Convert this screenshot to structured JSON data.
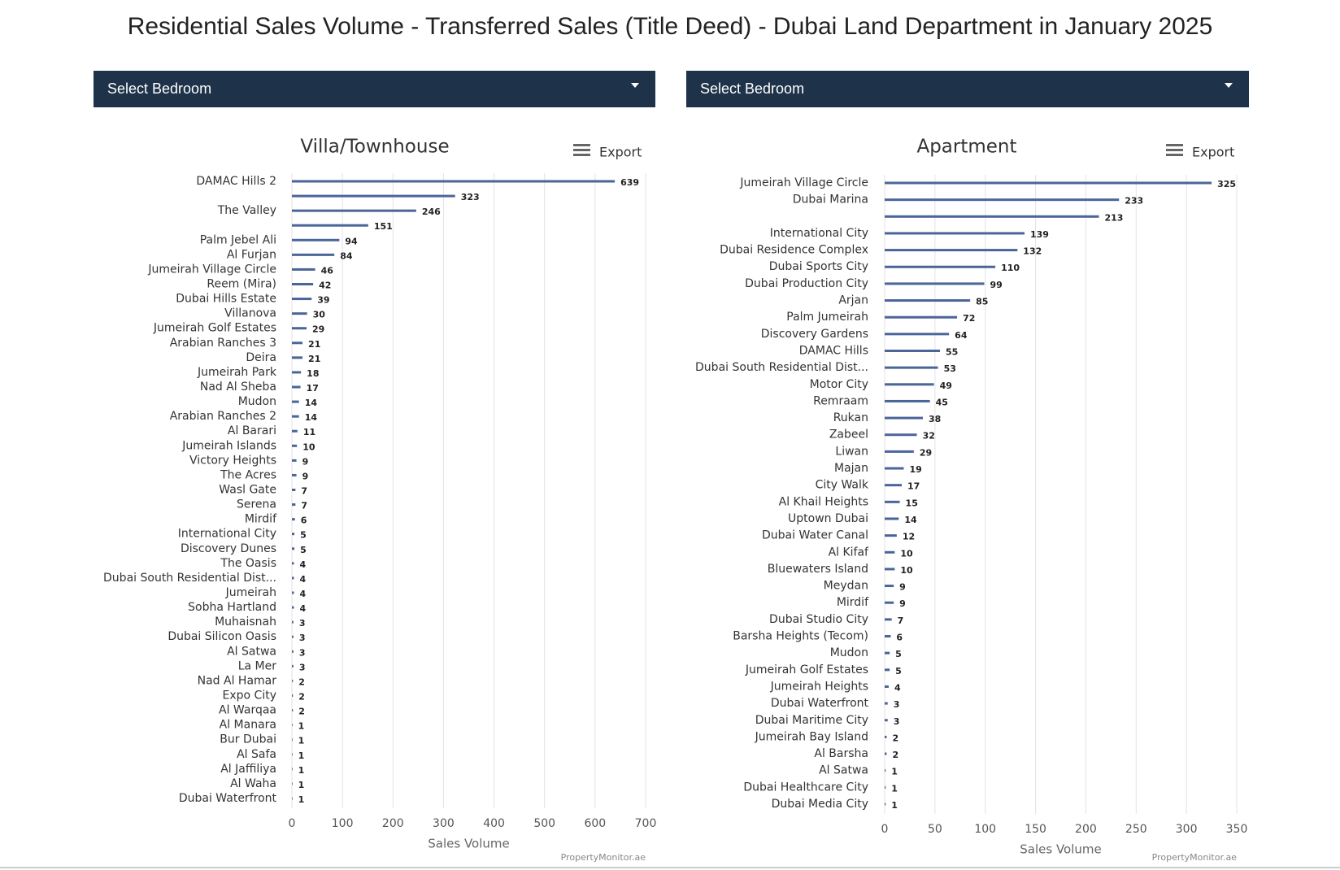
{
  "title": "Residential Sales Volume - Transferred Sales (Title Deed) - Dubai Land Department in January 2025",
  "chart_data": [
    {
      "type": "bar",
      "orientation": "horizontal",
      "dropdown_label": "Select Bedroom",
      "title": "Villa/Townhouse",
      "export_label": "Export",
      "xlabel": "Sales Volume",
      "credit": "PropertyMonitor.ae",
      "color": "#4a6599",
      "grid": true,
      "categories": [
        "DAMAC Hills 2",
        null,
        "The Valley",
        null,
        "Palm Jebel Ali",
        "Al Furjan",
        "Jumeirah Village Circle",
        "Reem (Mira)",
        "Dubai Hills Estate",
        "Villanova",
        "Jumeirah Golf Estates",
        "Arabian Ranches 3",
        "Deira",
        "Jumeirah Park",
        "Nad Al Sheba",
        "Mudon",
        "Arabian Ranches 2",
        "Al Barari",
        "Jumeirah Islands",
        "Victory Heights",
        "The Acres",
        "Wasl Gate",
        "Serena",
        "Mirdif",
        "International City",
        "Discovery Dunes",
        "The Oasis",
        "Dubai South Residential Dist...",
        "Jumeirah",
        "Sobha Hartland",
        "Muhaisnah",
        "Dubai Silicon Oasis",
        "Al Satwa",
        "La Mer",
        "Nad Al Hamar",
        "Expo City",
        "Al Warqaa",
        "Al Manara",
        "Bur Dubai",
        "Al Safa",
        "Al Jaffiliya",
        "Al Waha",
        "Dubai Waterfront"
      ],
      "values": [
        639,
        323,
        246,
        151,
        94,
        84,
        46,
        42,
        39,
        30,
        29,
        21,
        21,
        18,
        17,
        14,
        14,
        11,
        10,
        9,
        9,
        7,
        7,
        6,
        5,
        5,
        4,
        4,
        4,
        4,
        3,
        3,
        3,
        3,
        2,
        2,
        2,
        1,
        1,
        1,
        1,
        1,
        1
      ],
      "xlim": [
        0,
        700
      ],
      "xticks": [
        0,
        100,
        200,
        300,
        400,
        500,
        600,
        700
      ]
    },
    {
      "type": "bar",
      "orientation": "horizontal",
      "dropdown_label": "Select Bedroom",
      "title": "Apartment",
      "export_label": "Export",
      "xlabel": "Sales Volume",
      "credit": "PropertyMonitor.ae",
      "color": "#4a6599",
      "grid": true,
      "categories": [
        "Jumeirah Village Circle",
        "Dubai Marina",
        null,
        "International City",
        "Dubai Residence Complex",
        "Dubai Sports City",
        "Dubai Production City",
        "Arjan",
        "Palm Jumeirah",
        "Discovery Gardens",
        "DAMAC Hills",
        "Dubai South Residential Dist...",
        "Motor City",
        "Remraam",
        "Rukan",
        "Zabeel",
        "Liwan",
        "Majan",
        "City Walk",
        "Al Khail Heights",
        "Uptown Dubai",
        "Dubai Water Canal",
        "Al Kifaf",
        "Bluewaters Island",
        "Meydan",
        "Mirdif",
        "Dubai Studio City",
        "Barsha Heights (Tecom)",
        "Mudon",
        "Jumeirah Golf Estates",
        "Jumeirah Heights",
        "Dubai Waterfront",
        "Dubai Maritime City",
        "Jumeirah Bay Island",
        "Al Barsha",
        "Al Satwa",
        "Dubai Healthcare City",
        "Dubai Media City"
      ],
      "values": [
        325,
        233,
        213,
        139,
        132,
        110,
        99,
        85,
        72,
        64,
        55,
        53,
        49,
        45,
        38,
        32,
        29,
        19,
        17,
        15,
        14,
        12,
        10,
        10,
        9,
        9,
        7,
        6,
        5,
        5,
        4,
        3,
        3,
        2,
        2,
        1,
        1,
        1
      ],
      "xlim": [
        0,
        350
      ],
      "xticks": [
        0,
        50,
        100,
        150,
        200,
        250,
        300,
        350
      ]
    }
  ]
}
